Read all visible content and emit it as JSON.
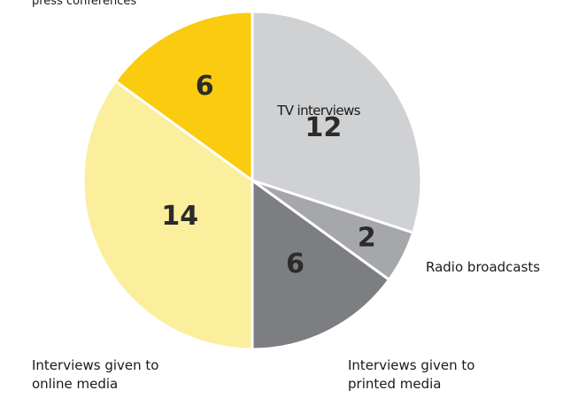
{
  "chart_data": {
    "type": "pie",
    "title": "press conferences",
    "start_angle_deg": 0,
    "direction": "clockwise",
    "categories": [
      "TV interviews",
      "Radio broadcasts",
      "Interviews given to printed media",
      "Interviews given to online media",
      ""
    ],
    "values": [
      12,
      2,
      6,
      14,
      6
    ],
    "colors": [
      "#d0d1d3",
      "#a5a7aa",
      "#7d7e81",
      "#fbee9d",
      "#facb0f"
    ],
    "labels": [
      {
        "lines": [
          "TV interviews"
        ],
        "placement": "inside"
      },
      {
        "lines": [
          "Radio broadcasts"
        ],
        "placement": "outside-right"
      },
      {
        "lines": [
          "Interviews given to",
          "printed media"
        ],
        "placement": "outside-bottom-right"
      },
      {
        "lines": [
          "Interviews given to",
          "online media"
        ],
        "placement": "outside-bottom-left"
      },
      {
        "lines": [],
        "placement": "none"
      }
    ],
    "value_labels": [
      "12",
      "2",
      "6",
      "14",
      "6"
    ],
    "legend": "none",
    "grid": false
  }
}
